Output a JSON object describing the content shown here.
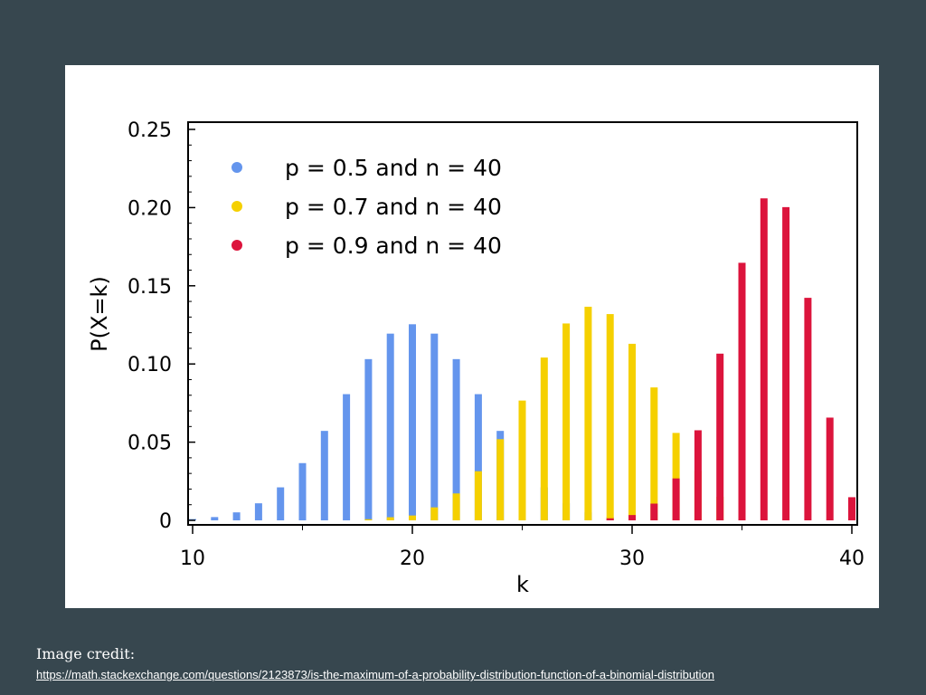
{
  "credit": {
    "label": "Image credit:",
    "url": "https://math.stackexchange.com/questions/2123873/is-the-maximum-of-a-probability-distribution-function-of-a-binomial-distribution"
  },
  "chart_data": {
    "type": "bar",
    "title": "",
    "xlabel": "k",
    "ylabel": "P(X=k)",
    "xlim": [
      10,
      40
    ],
    "ylim": [
      0,
      0.25
    ],
    "x_ticks": [
      10,
      20,
      30,
      40
    ],
    "y_ticks": [
      0,
      0.05,
      0.1,
      0.15,
      0.2,
      0.25
    ],
    "y_tick_labels": [
      "0",
      "0.05",
      "0.10",
      "0.15",
      "0.20",
      "0.25"
    ],
    "grid": false,
    "legend_position": "top-left",
    "series": [
      {
        "name": "p = 0.5 and n = 40",
        "color": "#6495ed",
        "x": [
          10,
          11,
          12,
          13,
          14,
          15,
          16,
          17,
          18,
          19,
          20,
          21,
          22,
          23,
          24,
          25,
          26,
          27,
          28,
          29,
          30
        ],
        "values": [
          0.0008,
          0.0021,
          0.0051,
          0.0109,
          0.0211,
          0.0366,
          0.0572,
          0.0807,
          0.1031,
          0.1194,
          0.1254,
          0.1194,
          0.1031,
          0.0807,
          0.0572,
          0.0366,
          0.0211,
          0.0109,
          0.0051,
          0.0021,
          0.0008
        ]
      },
      {
        "name": "p = 0.7 and n = 40",
        "color": "#f5d000",
        "x": [
          18,
          19,
          20,
          21,
          22,
          23,
          24,
          25,
          26,
          27,
          28,
          29,
          30,
          31,
          32,
          33,
          34
        ],
        "values": [
          0.0007,
          0.002,
          0.0031,
          0.0083,
          0.0172,
          0.0314,
          0.0519,
          0.0766,
          0.1041,
          0.1259,
          0.1366,
          0.1319,
          0.1129,
          0.085,
          0.0559,
          0.0316,
          0.0151
        ]
      },
      {
        "name": "p = 0.9 and n = 40",
        "color": "#dc143c",
        "x": [
          29,
          30,
          31,
          32,
          33,
          34,
          35,
          36,
          37,
          38,
          39,
          40
        ],
        "values": [
          0.0013,
          0.0034,
          0.0107,
          0.0268,
          0.0576,
          0.1066,
          0.1647,
          0.2059,
          0.2003,
          0.1423,
          0.0657,
          0.0148
        ]
      }
    ]
  }
}
